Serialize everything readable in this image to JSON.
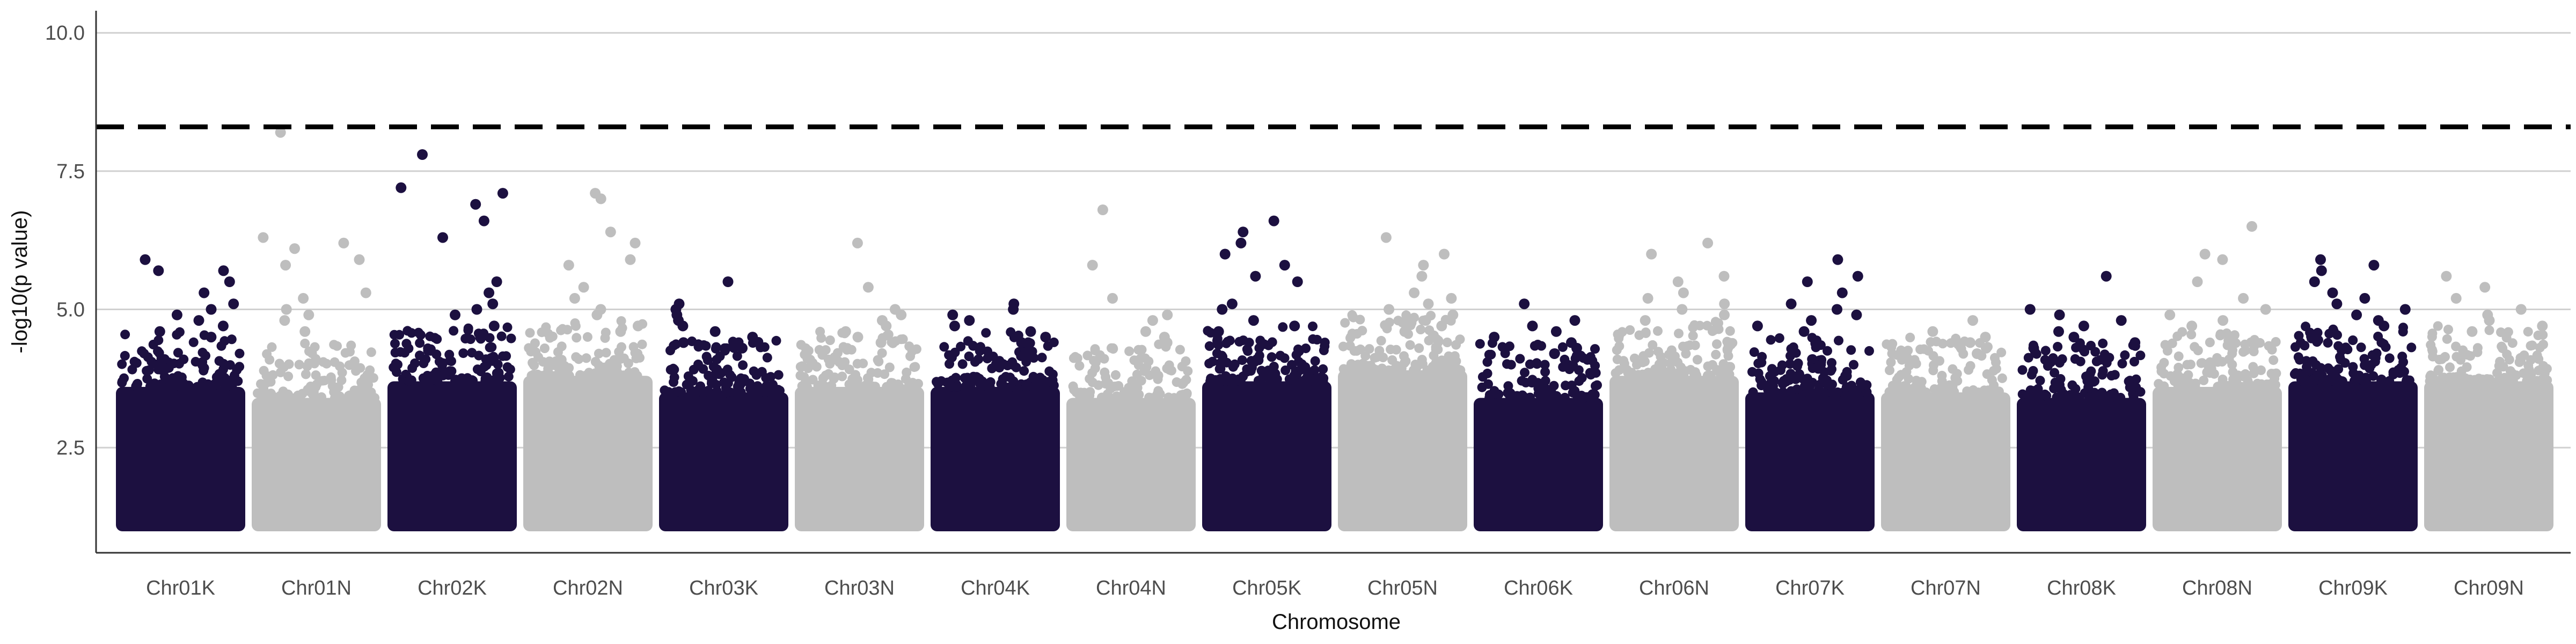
{
  "chart_data": {
    "type": "scatter",
    "title": "",
    "xlabel": "Chromosome",
    "ylabel": "-log10(p value)",
    "ylim": [
      0.6,
      10.4
    ],
    "yticks": [
      2.5,
      5.0,
      7.5,
      10.0
    ],
    "ytick_labels": [
      "2.5",
      "5.0",
      "7.5",
      "10.0"
    ],
    "grid": "horizontal major gridlines on",
    "significance_threshold": 8.3,
    "threshold_style": "black dashed line",
    "colors": {
      "dark": "#1c1040",
      "light": "#bebebe",
      "threshold": "#000000",
      "grid": "#d0d0d0",
      "axis": "#333333"
    },
    "categories": [
      "Chr01K",
      "Chr01N",
      "Chr02K",
      "Chr02N",
      "Chr03K",
      "Chr03N",
      "Chr04K",
      "Chr04N",
      "Chr05K",
      "Chr05N",
      "Chr06K",
      "Chr06N",
      "Chr07K",
      "Chr07N",
      "Chr08K",
      "Chr08N",
      "Chr09K",
      "Chr09N"
    ],
    "series": [
      {
        "chromosome": "Chr01K",
        "color": "dark",
        "band_max": 3.6,
        "peak_points": [
          5.9,
          5.7,
          5.7,
          5.5,
          5.3,
          5.1,
          5.0,
          4.9,
          4.8,
          4.7,
          4.6,
          4.5
        ]
      },
      {
        "chromosome": "Chr01N",
        "color": "light",
        "band_max": 3.4,
        "peak_points": [
          8.2,
          6.3,
          6.2,
          6.1,
          5.9,
          5.8,
          5.3,
          5.2,
          5.0,
          4.9,
          4.8,
          4.6
        ]
      },
      {
        "chromosome": "Chr02K",
        "color": "dark",
        "band_max": 3.7,
        "peak_points": [
          7.8,
          7.2,
          7.1,
          6.9,
          6.6,
          6.3,
          5.5,
          5.3,
          5.1,
          5.0,
          4.9,
          4.7
        ]
      },
      {
        "chromosome": "Chr02N",
        "color": "light",
        "band_max": 3.8,
        "peak_points": [
          7.1,
          7.0,
          6.4,
          6.2,
          5.9,
          5.8,
          5.4,
          5.2,
          5.0,
          4.9,
          4.7,
          4.6
        ]
      },
      {
        "chromosome": "Chr03K",
        "color": "dark",
        "band_max": 3.5,
        "peak_points": [
          5.5,
          5.1,
          5.0,
          4.9,
          4.8,
          4.7,
          4.6,
          4.5,
          4.4,
          4.3
        ]
      },
      {
        "chromosome": "Chr03N",
        "color": "light",
        "band_max": 3.6,
        "peak_points": [
          6.2,
          5.4,
          5.0,
          4.9,
          4.8,
          4.7,
          4.6,
          4.5,
          4.4
        ]
      },
      {
        "chromosome": "Chr04K",
        "color": "dark",
        "band_max": 3.6,
        "peak_points": [
          5.1,
          5.0,
          4.9,
          4.8,
          4.7,
          4.6,
          4.5,
          4.4
        ]
      },
      {
        "chromosome": "Chr04N",
        "color": "light",
        "band_max": 3.4,
        "peak_points": [
          6.8,
          5.8,
          5.2,
          4.9,
          4.8,
          4.6,
          4.5,
          4.4
        ]
      },
      {
        "chromosome": "Chr05K",
        "color": "dark",
        "band_max": 3.7,
        "peak_points": [
          6.6,
          6.4,
          6.2,
          6.0,
          5.8,
          5.6,
          5.5,
          5.1,
          5.0,
          4.8,
          4.7,
          4.6
        ]
      },
      {
        "chromosome": "Chr05N",
        "color": "light",
        "band_max": 3.9,
        "peak_points": [
          6.3,
          6.0,
          5.8,
          5.6,
          5.3,
          5.2,
          5.1,
          5.0,
          4.9,
          4.8,
          4.7,
          4.6
        ]
      },
      {
        "chromosome": "Chr06K",
        "color": "dark",
        "band_max": 3.4,
        "peak_points": [
          5.1,
          4.8,
          4.7,
          4.6,
          4.5,
          4.4,
          4.3,
          4.2
        ]
      },
      {
        "chromosome": "Chr06N",
        "color": "light",
        "band_max": 3.8,
        "peak_points": [
          6.2,
          6.0,
          5.6,
          5.5,
          5.3,
          5.2,
          5.1,
          5.0,
          4.9,
          4.8
        ]
      },
      {
        "chromosome": "Chr07K",
        "color": "dark",
        "band_max": 3.5,
        "peak_points": [
          5.9,
          5.6,
          5.5,
          5.3,
          5.1,
          5.0,
          4.9,
          4.8,
          4.7,
          4.6
        ]
      },
      {
        "chromosome": "Chr07N",
        "color": "light",
        "band_max": 3.5,
        "peak_points": [
          4.8,
          4.6,
          4.5,
          4.4,
          4.3,
          4.2
        ]
      },
      {
        "chromosome": "Chr08K",
        "color": "dark",
        "band_max": 3.4,
        "peak_points": [
          5.6,
          5.0,
          4.9,
          4.8,
          4.7,
          4.6,
          4.5,
          4.4,
          4.3
        ]
      },
      {
        "chromosome": "Chr08N",
        "color": "light",
        "band_max": 3.6,
        "peak_points": [
          6.5,
          6.0,
          5.9,
          5.5,
          5.2,
          5.0,
          4.9,
          4.8,
          4.7
        ]
      },
      {
        "chromosome": "Chr09K",
        "color": "dark",
        "band_max": 3.7,
        "peak_points": [
          5.9,
          5.8,
          5.7,
          5.5,
          5.3,
          5.2,
          5.1,
          5.0,
          4.9,
          4.8,
          4.7,
          4.6
        ]
      },
      {
        "chromosome": "Chr09N",
        "color": "light",
        "band_max": 3.7,
        "peak_points": [
          5.6,
          5.4,
          5.2,
          5.0,
          4.9,
          4.8,
          4.7,
          4.6
        ]
      }
    ]
  }
}
